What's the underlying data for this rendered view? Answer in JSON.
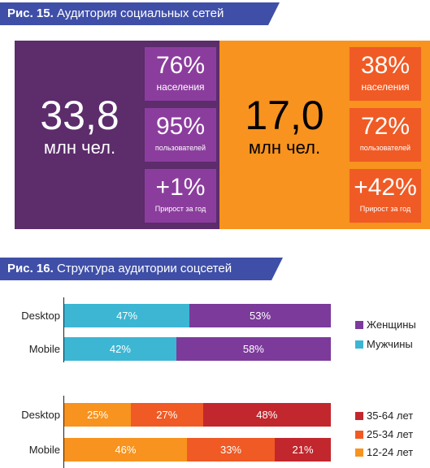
{
  "fig15": {
    "number": "Рис. 15.",
    "title": "Аудитория социальных сетей",
    "left": {
      "big_value": "33,8",
      "big_unit": "млн чел.",
      "stats": [
        {
          "value": "76%",
          "label": "населения"
        },
        {
          "value": "95%",
          "label": "пользователей"
        },
        {
          "value": "+1%",
          "label": "Прирост за год"
        }
      ]
    },
    "right": {
      "big_value": "17,0",
      "big_unit": "млн чел.",
      "stats": [
        {
          "value": "38%",
          "label": "населения"
        },
        {
          "value": "72%",
          "label": "пользователей"
        },
        {
          "value": "+42%",
          "label": "Прирост за год"
        }
      ]
    },
    "colors": {
      "left_bg": "#5c2c6b",
      "left_box": "#8b3d9d",
      "right_bg": "#f7931e",
      "right_box": "#f05a24"
    }
  },
  "fig16": {
    "number": "Рис. 16.",
    "title": "Структура аудитории соцсетей"
  },
  "chart_data": [
    {
      "type": "bar",
      "orientation": "horizontal",
      "stacked": true,
      "percent": true,
      "categories": [
        "Desktop",
        "Mobile"
      ],
      "series": [
        {
          "name": "Мужчины",
          "values": [
            47,
            42
          ],
          "color": "#3cb6d3"
        },
        {
          "name": "Женщины",
          "values": [
            53,
            58
          ],
          "color": "#7c3a9b"
        }
      ],
      "legend_order": [
        "Женщины",
        "Мужчины"
      ],
      "legend_placement": "right"
    },
    {
      "type": "bar",
      "orientation": "horizontal",
      "stacked": true,
      "percent": true,
      "categories": [
        "Desktop",
        "Mobile"
      ],
      "series": [
        {
          "name": "12-24 лет",
          "values": [
            25,
            46
          ],
          "color": "#f7931e"
        },
        {
          "name": "25-34 лет",
          "values": [
            27,
            33
          ],
          "color": "#f05a24"
        },
        {
          "name": "35-64 лет",
          "values": [
            48,
            21
          ],
          "color": "#c1272d"
        }
      ],
      "legend_order": [
        "35-64 лет",
        "25-34 лет",
        "12-24 лет"
      ],
      "legend_placement": "right"
    }
  ]
}
